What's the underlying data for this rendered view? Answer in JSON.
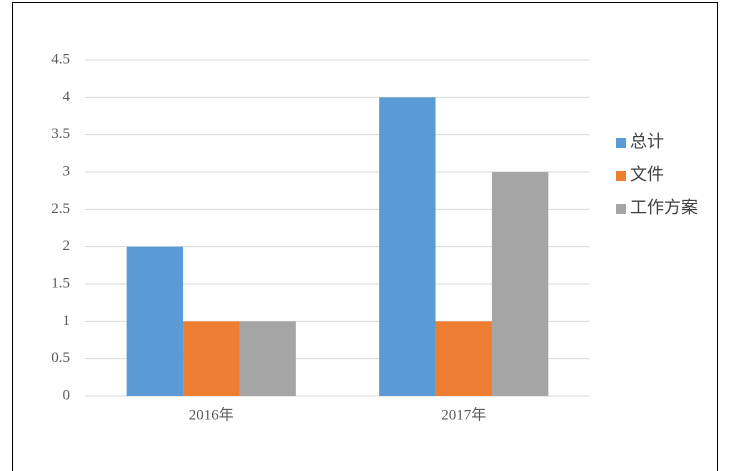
{
  "chart_data": {
    "type": "bar",
    "categories": [
      "2016年",
      "2017年"
    ],
    "series": [
      {
        "name": "总计",
        "color": "#5b9bd5",
        "values": [
          2,
          4
        ]
      },
      {
        "name": "文件",
        "color": "#ed7d31",
        "values": [
          1,
          1
        ]
      },
      {
        "name": "工作方案",
        "color": "#a5a5a5",
        "values": [
          1,
          3
        ]
      }
    ],
    "ylim": [
      0,
      4.5
    ],
    "yticks": [
      0,
      0.5,
      1,
      1.5,
      2,
      2.5,
      3,
      3.5,
      4,
      4.5
    ],
    "grid": true,
    "legend": "right"
  }
}
